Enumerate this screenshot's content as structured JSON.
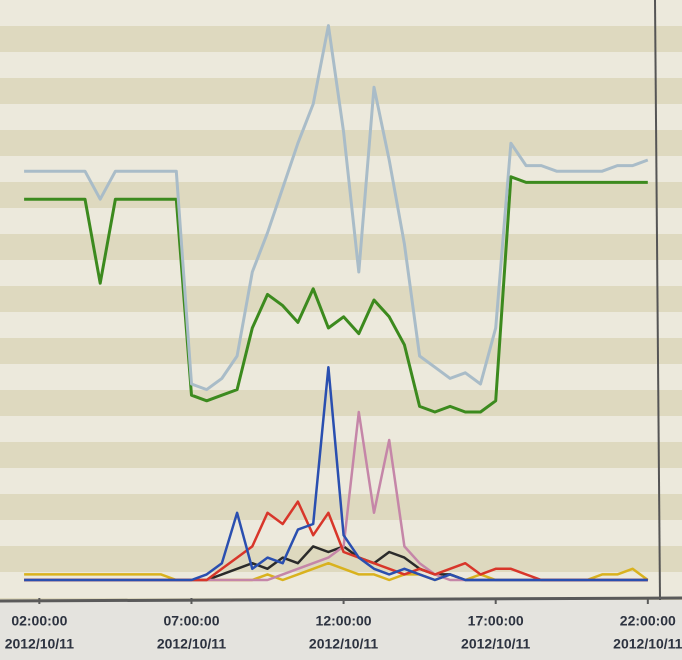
{
  "chart_data": {
    "type": "line",
    "x": [
      1.5,
      2,
      2.5,
      3,
      3.5,
      4,
      4.5,
      5,
      5.5,
      6,
      6.5,
      7,
      7.5,
      8,
      8.5,
      9,
      9.5,
      10,
      10.5,
      11,
      11.5,
      12,
      12.5,
      13,
      13.5,
      14,
      14.5,
      15,
      15.5,
      16,
      16.5,
      17,
      17.5,
      18,
      18.5,
      19,
      19.5,
      20,
      20.5,
      21,
      21.5,
      22
    ],
    "series": [
      {
        "color": "#a9bcc8",
        "values": [
          73,
          73,
          73,
          73,
          73,
          68,
          73,
          73,
          73,
          73,
          73,
          35,
          34,
          36,
          40,
          55,
          62,
          70,
          78,
          85,
          99,
          80,
          55,
          88,
          75,
          60,
          40,
          38,
          36,
          37,
          35,
          45,
          78,
          74,
          74,
          73,
          73,
          73,
          73,
          74,
          74,
          75
        ]
      },
      {
        "color": "#3c8a1e",
        "values": [
          68,
          68,
          68,
          68,
          68,
          53,
          68,
          68,
          68,
          68,
          68,
          33,
          32,
          33,
          34,
          45,
          51,
          49,
          46,
          52,
          45,
          47,
          44,
          50,
          47,
          42,
          31,
          30,
          31,
          30,
          30,
          32,
          72,
          71,
          71,
          71,
          71,
          71,
          71,
          71,
          71,
          71
        ]
      },
      {
        "color": "#2a4fb0",
        "values": [
          0,
          0,
          0,
          0,
          0,
          0,
          0,
          0,
          0,
          0,
          0,
          0,
          1,
          3,
          12,
          2,
          4,
          3,
          9,
          10,
          38,
          8,
          4,
          2,
          1,
          2,
          1,
          0,
          1,
          0,
          0,
          0,
          0,
          0,
          0,
          0,
          0,
          0,
          0,
          0,
          0,
          0
        ]
      },
      {
        "color": "#d8362a",
        "values": [
          0,
          0,
          0,
          0,
          0,
          0,
          0,
          0,
          0,
          0,
          0,
          0,
          0,
          2,
          4,
          6,
          12,
          10,
          14,
          8,
          12,
          5,
          4,
          3,
          2,
          1,
          2,
          1,
          2,
          3,
          1,
          2,
          2,
          1,
          0,
          0,
          0,
          0,
          0,
          0,
          0,
          0
        ]
      },
      {
        "color": "#c586a8",
        "values": [
          0,
          0,
          0,
          0,
          0,
          0,
          0,
          0,
          0,
          0,
          0,
          0,
          0,
          0,
          0,
          0,
          0,
          1,
          2,
          3,
          4,
          6,
          30,
          12,
          25,
          6,
          3,
          1,
          0,
          0,
          0,
          0,
          0,
          0,
          0,
          0,
          0,
          0,
          0,
          0,
          0,
          0
        ]
      },
      {
        "color": "#2b2b2b",
        "values": [
          0,
          0,
          0,
          0,
          0,
          0,
          0,
          0,
          0,
          0,
          0,
          0,
          0,
          1,
          2,
          3,
          2,
          4,
          3,
          6,
          5,
          6,
          4,
          3,
          5,
          4,
          2,
          1,
          1,
          0,
          0,
          0,
          0,
          0,
          0,
          0,
          0,
          0,
          0,
          0,
          0,
          0
        ]
      },
      {
        "color": "#d9b21e",
        "values": [
          1,
          1,
          1,
          1,
          1,
          1,
          1,
          1,
          1,
          1,
          0,
          0,
          0,
          0,
          0,
          0,
          1,
          0,
          1,
          2,
          3,
          2,
          1,
          1,
          0,
          1,
          1,
          0,
          1,
          0,
          1,
          0,
          0,
          0,
          0,
          0,
          0,
          0,
          1,
          1,
          2,
          0
        ]
      }
    ],
    "xlim": [
      1.2,
      22.4
    ],
    "ylim": [
      0,
      100
    ],
    "xticks": [
      {
        "value": 2,
        "label": "02:00:00"
      },
      {
        "value": 7,
        "label": "07:00:00"
      },
      {
        "value": 12,
        "label": "12:00:00"
      },
      {
        "value": 17,
        "label": "17:00:00"
      },
      {
        "value": 22,
        "label": "22:00:00"
      }
    ],
    "xtick_dates": [
      "2012/10/11",
      "2012/10/11",
      "2012/10/11",
      "2012/10/11",
      "2012/10/11"
    ]
  }
}
